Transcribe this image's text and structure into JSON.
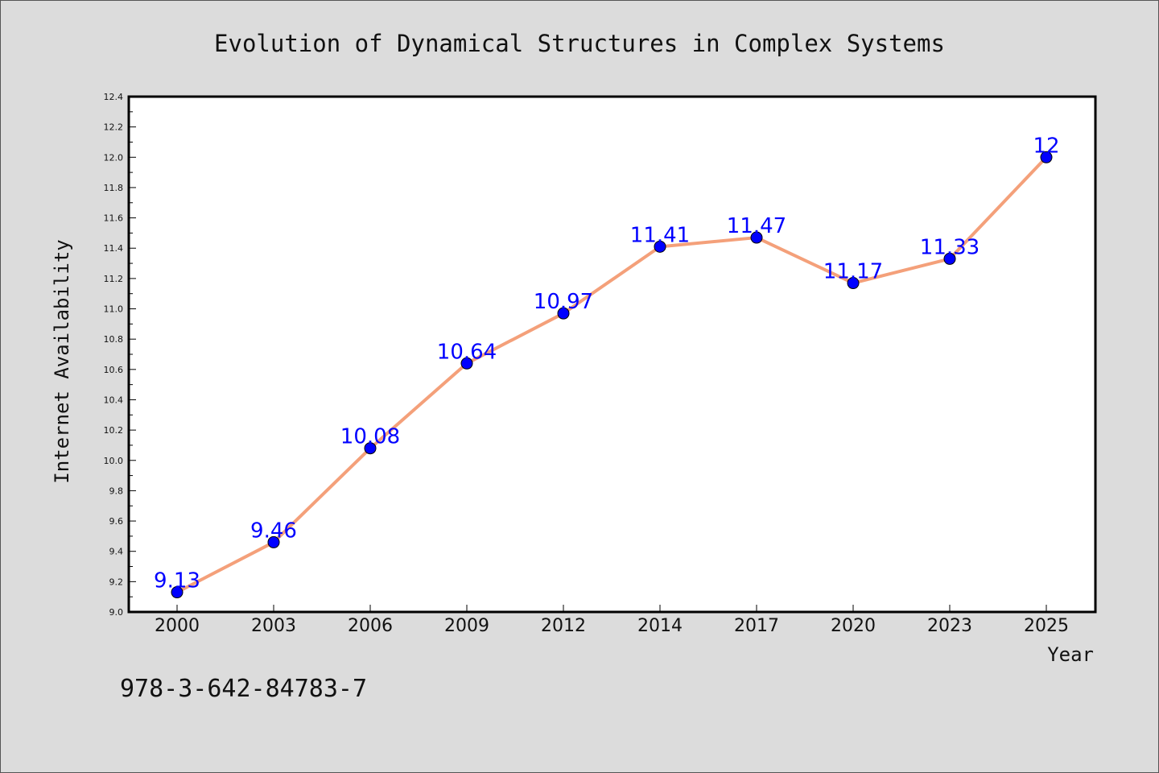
{
  "chart_data": {
    "type": "line",
    "title": "Evolution of Dynamical Structures in Complex Systems",
    "xlabel": "Year",
    "ylabel": "Internet Availability",
    "categories": [
      "2000",
      "2003",
      "2006",
      "2009",
      "2012",
      "2014",
      "2017",
      "2020",
      "2023",
      "2025"
    ],
    "series": [
      {
        "values": [
          9.13,
          9.46,
          10.08,
          10.64,
          10.97,
          11.41,
          11.47,
          11.17,
          11.33,
          12
        ],
        "labels": [
          "9.13",
          "9.46",
          "10.08",
          "10.64",
          "10.97",
          "11.41",
          "11.47",
          "11.17",
          "11.33",
          "12"
        ],
        "line_color": "#f4a07a",
        "marker_color": "#0000ff"
      }
    ],
    "ylim": [
      9.0,
      12.4
    ],
    "yticks": [
      "9.0",
      "9.2",
      "9.4",
      "9.6",
      "9.8",
      "10.0",
      "10.2",
      "10.4",
      "10.6",
      "10.8",
      "11.0",
      "11.2",
      "11.4",
      "11.6",
      "11.8",
      "12.0",
      "12.2",
      "12.4"
    ],
    "grid": false,
    "legend": "none"
  },
  "footer": {
    "isbn": "978-3-642-84783-7"
  },
  "colors": {
    "background": "#dcdcdc",
    "plot_background": "#ffffff",
    "label_color": "#0000ff"
  }
}
